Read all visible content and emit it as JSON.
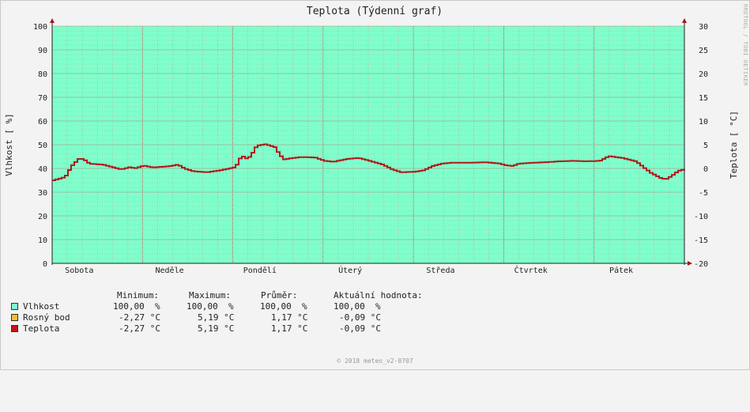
{
  "title": "Teplota (Týdenní graf)",
  "side_mark": "RRDTOOL / TOBI OETIKER",
  "footer": "© 2018 meteo_v2-0707",
  "colors": {
    "plot_bg": "#7fffcc",
    "line": "#b01818",
    "vlhkost": "#7fffcc",
    "rosny_bod": "#f0c030",
    "teplota": "#c01818"
  },
  "stats": {
    "headers": {
      "min": "Minimum:",
      "max": "Maximum:",
      "avg": "Průměr:",
      "cur": "Aktuální hodnota:"
    },
    "rows": [
      {
        "name": "Vlhkost",
        "min": "100,00  %",
        "max": "100,00  %",
        "avg": "100,00  %",
        "cur": "100,00  %",
        "color": "#7fffcc"
      },
      {
        "name": "Rosný bod",
        "min": "-2,27 °C",
        "max": "5,19 °C",
        "avg": "1,17 °C",
        "cur": "-0,09 °C",
        "color": "#f0c030"
      },
      {
        "name": "Teplota",
        "min": "-2,27 °C",
        "max": "5,19 °C",
        "avg": "1,17 °C",
        "cur": "-0,09 °C",
        "color": "#c01818"
      }
    ]
  },
  "chart_data": {
    "type": "area",
    "title": "Teplota (Týdenní graf)",
    "x_range": [
      0,
      7
    ],
    "x_unit": "days",
    "categories": [
      "Sobota",
      "Neděle",
      "Pondělí",
      "Úterý",
      "Středa",
      "Čtvrtek",
      "Pátek"
    ],
    "ylabel_left": "Vlhkost [ %]",
    "ylim_left": [
      0,
      100
    ],
    "yticks_left": [
      0,
      10,
      20,
      30,
      40,
      50,
      60,
      70,
      80,
      90,
      100
    ],
    "ylabel_right": "Teplota [ °C]",
    "ylim_right": [
      -20,
      30
    ],
    "yticks_right": [
      -20,
      -15,
      -10,
      -5,
      0,
      5,
      10,
      15,
      20,
      25,
      30
    ],
    "grid": true,
    "series": [
      {
        "name": "Vlhkost",
        "axis": "left",
        "values_constant": 100
      },
      {
        "name": "Teplota",
        "axis": "right",
        "points": [
          [
            0.0,
            -2.5
          ],
          [
            0.1,
            -2.0
          ],
          [
            0.14,
            -1.5
          ],
          [
            0.2,
            0.5
          ],
          [
            0.28,
            2.0
          ],
          [
            0.33,
            2.0
          ],
          [
            0.4,
            1.0
          ],
          [
            0.55,
            0.8
          ],
          [
            0.65,
            0.3
          ],
          [
            0.75,
            -0.2
          ],
          [
            0.85,
            0.3
          ],
          [
            0.9,
            0.0
          ],
          [
            1.0,
            0.6
          ],
          [
            1.1,
            0.2
          ],
          [
            1.3,
            0.5
          ],
          [
            1.38,
            0.8
          ],
          [
            1.45,
            0.0
          ],
          [
            1.55,
            -0.6
          ],
          [
            1.7,
            -0.8
          ],
          [
            1.85,
            -0.4
          ],
          [
            2.0,
            0.2
          ],
          [
            2.05,
            1.2
          ],
          [
            2.08,
            3.0
          ],
          [
            2.12,
            2.0
          ],
          [
            2.18,
            2.5
          ],
          [
            2.25,
            4.8
          ],
          [
            2.35,
            5.1
          ],
          [
            2.45,
            4.5
          ],
          [
            2.5,
            3.0
          ],
          [
            2.55,
            1.9
          ],
          [
            2.65,
            2.2
          ],
          [
            2.75,
            2.4
          ],
          [
            2.9,
            2.3
          ],
          [
            3.0,
            1.6
          ],
          [
            3.1,
            1.4
          ],
          [
            3.25,
            2.0
          ],
          [
            3.38,
            2.2
          ],
          [
            3.5,
            1.6
          ],
          [
            3.65,
            0.8
          ],
          [
            3.75,
            -0.2
          ],
          [
            3.85,
            -0.8
          ],
          [
            4.0,
            -0.7
          ],
          [
            4.1,
            -0.4
          ],
          [
            4.2,
            0.5
          ],
          [
            4.3,
            1.0
          ],
          [
            4.4,
            1.2
          ],
          [
            4.6,
            1.2
          ],
          [
            4.8,
            1.3
          ],
          [
            4.95,
            1.0
          ],
          [
            5.0,
            0.7
          ],
          [
            5.08,
            0.5
          ],
          [
            5.15,
            1.0
          ],
          [
            5.3,
            1.2
          ],
          [
            5.45,
            1.3
          ],
          [
            5.6,
            1.5
          ],
          [
            5.75,
            1.6
          ],
          [
            5.9,
            1.5
          ],
          [
            6.05,
            1.6
          ],
          [
            6.15,
            2.6
          ],
          [
            6.3,
            2.2
          ],
          [
            6.45,
            1.5
          ],
          [
            6.55,
            0.0
          ],
          [
            6.62,
            -1.0
          ],
          [
            6.67,
            -1.5
          ],
          [
            6.72,
            -2.0
          ],
          [
            6.78,
            -2.3
          ],
          [
            6.85,
            -1.5
          ],
          [
            6.92,
            -0.5
          ],
          [
            7.0,
            -0.1
          ]
        ]
      }
    ]
  }
}
